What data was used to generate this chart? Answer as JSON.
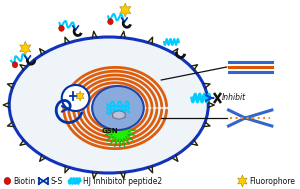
{
  "cell_fill": "#eef4f8",
  "cell_border": "#1133bb",
  "nucleus_fill": "#88aadd",
  "nucleus_border": "#2244aa",
  "er_color": "#dd5500",
  "green_color": "#33ee00",
  "cyan": "#00ccff",
  "dark_blue": "#001188",
  "navy": "#0033aa",
  "orange": "#ff8800",
  "red": "#dd1100",
  "gold": "#ffcc00",
  "black": "#111111",
  "white": "#ffffff",
  "gsn_text": "GSN",
  "inhibit_text": "Inhibit",
  "legend": [
    {
      "label": "Biotin",
      "color": "#dd1100"
    },
    {
      "label": "S-S",
      "color": "#001188"
    },
    {
      "label": "HJ inhibitor peptide2",
      "color": "#00ccff"
    },
    {
      "label": "Fluorophore",
      "color": "#ffcc00"
    }
  ]
}
